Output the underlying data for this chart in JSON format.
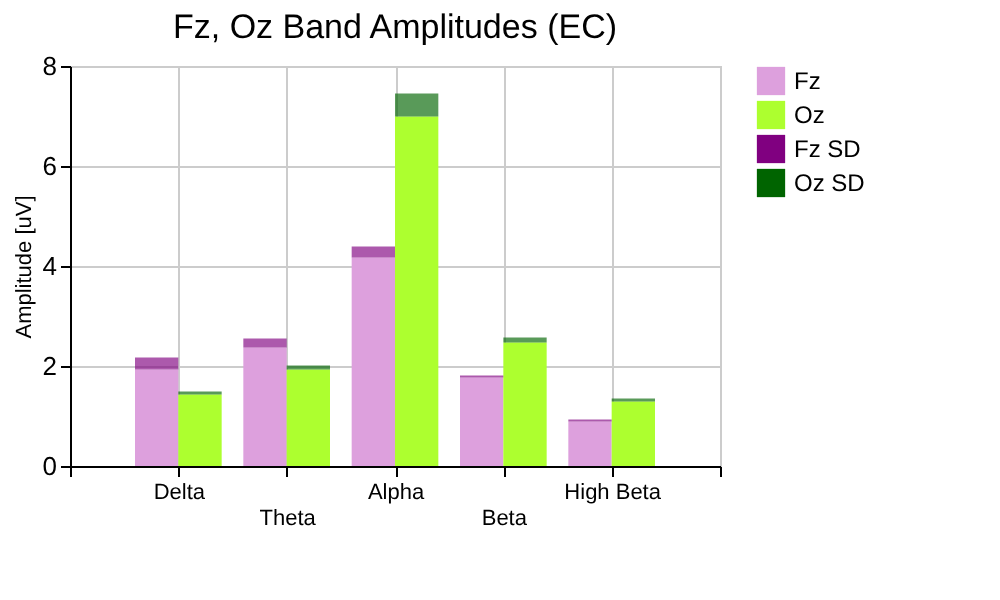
{
  "chart_data": {
    "type": "bar",
    "title": "Fz, Oz Band Amplitudes (EC)",
    "ylabel": "Amplitude [uV]",
    "categories": [
      "Delta",
      "Theta",
      "Alpha",
      "Beta",
      "High Beta"
    ],
    "series": [
      {
        "name": "Fz",
        "color": "#dda0dd",
        "values": [
          1.93,
          2.37,
          4.17,
          1.77,
          0.89
        ]
      },
      {
        "name": "Oz",
        "color": "#adff2f",
        "values": [
          1.43,
          1.93,
          6.99,
          2.47,
          1.29
        ]
      },
      {
        "name": "Fz SD",
        "color": "#800080",
        "base": [
          1.93,
          2.37,
          4.17,
          1.77,
          0.89
        ],
        "values": [
          0.24,
          0.18,
          0.22,
          0.04,
          0.04
        ]
      },
      {
        "name": "Oz SD",
        "color": "#006400",
        "base": [
          1.43,
          1.93,
          6.99,
          2.47,
          1.29
        ],
        "values": [
          0.06,
          0.08,
          0.46,
          0.1,
          0.06
        ]
      }
    ],
    "ylim": [
      0,
      8
    ],
    "yticks": [
      0,
      2,
      4,
      6,
      8
    ],
    "grid": true,
    "legend": "top right"
  }
}
